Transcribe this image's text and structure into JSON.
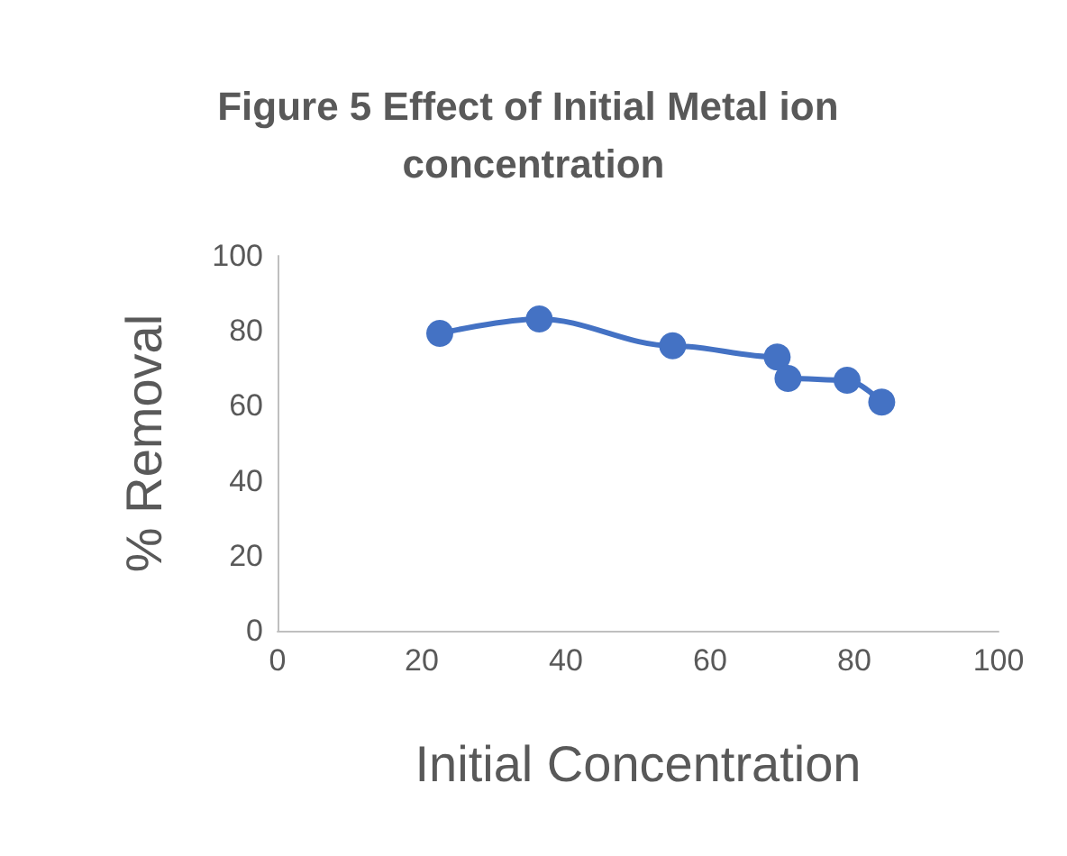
{
  "chart_data": {
    "type": "line",
    "title": "Figure 5 Effect of Initial Metal ion concentration",
    "xlabel": "Initial Concentration",
    "ylabel": "% Removal",
    "series": [
      {
        "color": "#4472c4",
        "x": [
          22.5,
          36.3,
          54.8,
          69.3,
          70.8,
          79,
          83.8
        ],
        "values": [
          79.3,
          83.2,
          76,
          73,
          67.3,
          66.8,
          61
        ]
      }
    ],
    "xlim": [
      0,
      100
    ],
    "xticks": [
      0,
      20,
      40,
      60,
      80,
      100
    ],
    "ylim": [
      0,
      100
    ],
    "yticks": [
      0,
      20,
      40,
      60,
      80,
      100
    ],
    "grid": false,
    "marker": "circle",
    "line_style": "solid"
  }
}
